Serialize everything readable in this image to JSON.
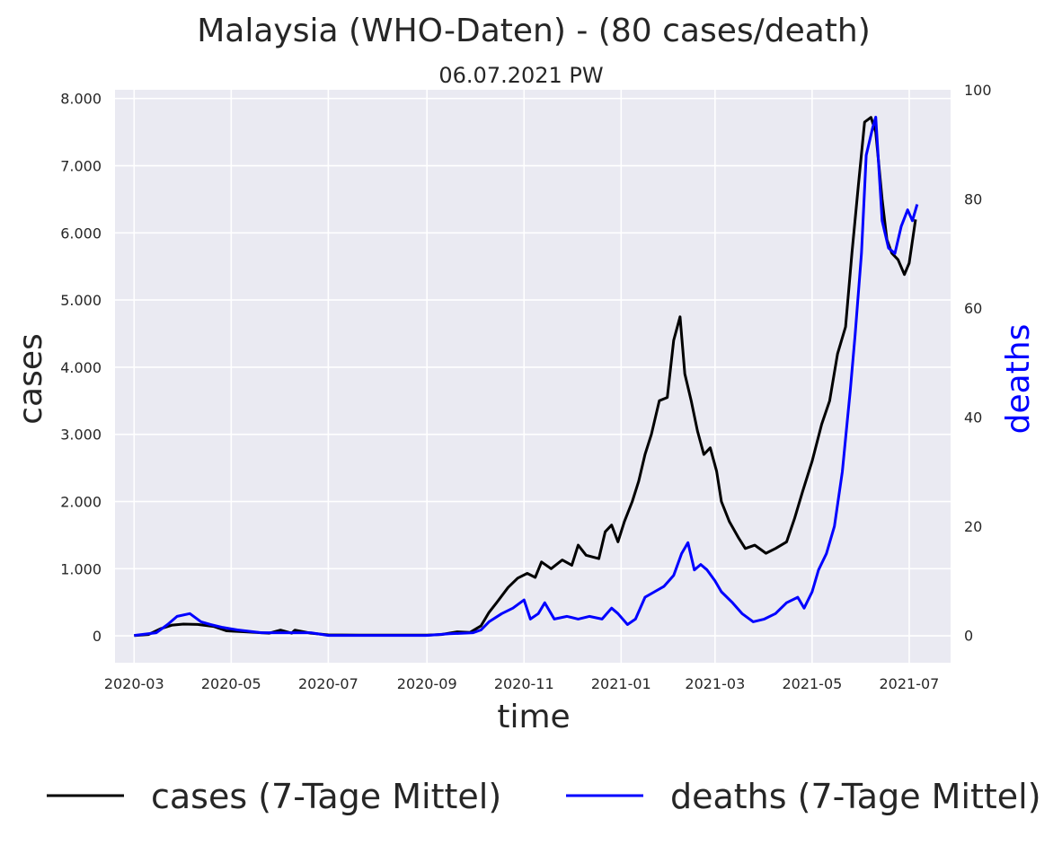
{
  "chart_data": {
    "type": "line",
    "title": "Malaysia (WHO-Daten) - (80 cases/death)",
    "subtitle": "06.07.2021 PW",
    "xlabel": "time",
    "ylabel": "cases",
    "ylabel_right": "deaths",
    "x_ticks": [
      "2020-03",
      "2020-05",
      "2020-07",
      "2020-09",
      "2020-11",
      "2021-01",
      "2021-03",
      "2021-05",
      "2021-07"
    ],
    "y_ticks": [
      "0",
      "1.000",
      "2.000",
      "3.000",
      "4.000",
      "5.000",
      "6.000",
      "7.000",
      "8.000"
    ],
    "y_ticks_right": [
      "0",
      "20",
      "40",
      "60",
      "80",
      "100"
    ],
    "xlim": [
      "2020-02-18",
      "2021-07-27"
    ],
    "ylim": [
      -400,
      8130
    ],
    "ylim_right": [
      -5,
      100
    ],
    "grid": true,
    "legend_position": "bottom",
    "series": [
      {
        "name": "cases (7-Tage Mittel)",
        "axis": "left",
        "color": "#000000",
        "points": [
          [
            "2020-03-01",
            5
          ],
          [
            "2020-03-10",
            20
          ],
          [
            "2020-03-18",
            110
          ],
          [
            "2020-03-25",
            160
          ],
          [
            "2020-04-01",
            175
          ],
          [
            "2020-04-10",
            170
          ],
          [
            "2020-04-20",
            140
          ],
          [
            "2020-04-28",
            75
          ],
          [
            "2020-05-10",
            60
          ],
          [
            "2020-05-25",
            40
          ],
          [
            "2020-06-01",
            85
          ],
          [
            "2020-06-08",
            40
          ],
          [
            "2020-06-10",
            85
          ],
          [
            "2020-06-20",
            40
          ],
          [
            "2020-07-01",
            15
          ],
          [
            "2020-07-20",
            10
          ],
          [
            "2020-08-10",
            10
          ],
          [
            "2020-09-01",
            10
          ],
          [
            "2020-09-10",
            20
          ],
          [
            "2020-09-20",
            60
          ],
          [
            "2020-09-28",
            50
          ],
          [
            "2020-10-05",
            150
          ],
          [
            "2020-10-10",
            350
          ],
          [
            "2020-10-15",
            500
          ],
          [
            "2020-10-22",
            720
          ],
          [
            "2020-10-28",
            860
          ],
          [
            "2020-11-03",
            930
          ],
          [
            "2020-11-08",
            870
          ],
          [
            "2020-11-12",
            1100
          ],
          [
            "2020-11-18",
            1000
          ],
          [
            "2020-11-25",
            1130
          ],
          [
            "2020-12-01",
            1050
          ],
          [
            "2020-12-05",
            1350
          ],
          [
            "2020-12-10",
            1200
          ],
          [
            "2020-12-18",
            1150
          ],
          [
            "2020-12-22",
            1550
          ],
          [
            "2020-12-26",
            1650
          ],
          [
            "2020-12-30",
            1400
          ],
          [
            "2021-01-03",
            1700
          ],
          [
            "2021-01-08",
            2000
          ],
          [
            "2021-01-12",
            2300
          ],
          [
            "2021-01-16",
            2700
          ],
          [
            "2021-01-20",
            3000
          ],
          [
            "2021-01-25",
            3500
          ],
          [
            "2021-01-30",
            3550
          ],
          [
            "2021-02-03",
            4400
          ],
          [
            "2021-02-07",
            4750
          ],
          [
            "2021-02-10",
            3900
          ],
          [
            "2021-02-14",
            3500
          ],
          [
            "2021-02-18",
            3050
          ],
          [
            "2021-02-22",
            2700
          ],
          [
            "2021-02-26",
            2800
          ],
          [
            "2021-03-02",
            2450
          ],
          [
            "2021-03-05",
            2000
          ],
          [
            "2021-03-10",
            1700
          ],
          [
            "2021-03-16",
            1450
          ],
          [
            "2021-03-20",
            1300
          ],
          [
            "2021-03-26",
            1350
          ],
          [
            "2021-04-02",
            1230
          ],
          [
            "2021-04-08",
            1300
          ],
          [
            "2021-04-15",
            1400
          ],
          [
            "2021-04-20",
            1750
          ],
          [
            "2021-04-25",
            2150
          ],
          [
            "2021-05-01",
            2600
          ],
          [
            "2021-05-07",
            3150
          ],
          [
            "2021-05-12",
            3500
          ],
          [
            "2021-05-17",
            4200
          ],
          [
            "2021-05-22",
            4600
          ],
          [
            "2021-05-26",
            5700
          ],
          [
            "2021-05-30",
            6700
          ],
          [
            "2021-06-03",
            7650
          ],
          [
            "2021-06-07",
            7720
          ],
          [
            "2021-06-10",
            7500
          ],
          [
            "2021-06-14",
            6500
          ],
          [
            "2021-06-17",
            5900
          ],
          [
            "2021-06-20",
            5700
          ],
          [
            "2021-06-24",
            5600
          ],
          [
            "2021-06-28",
            5380
          ],
          [
            "2021-07-01",
            5550
          ],
          [
            "2021-07-05",
            6200
          ]
        ]
      },
      {
        "name": "deaths (7-Tage Mittel)",
        "axis": "right",
        "color": "#0000ff",
        "points": [
          [
            "2020-03-01",
            0
          ],
          [
            "2020-03-15",
            0.5
          ],
          [
            "2020-03-22",
            2
          ],
          [
            "2020-03-28",
            3.5
          ],
          [
            "2020-04-05",
            4
          ],
          [
            "2020-04-12",
            2.5
          ],
          [
            "2020-04-18",
            2
          ],
          [
            "2020-04-25",
            1.5
          ],
          [
            "2020-05-05",
            1
          ],
          [
            "2020-05-20",
            0.5
          ],
          [
            "2020-06-05",
            0.5
          ],
          [
            "2020-06-20",
            0.5
          ],
          [
            "2020-07-01",
            0
          ],
          [
            "2020-08-01",
            0
          ],
          [
            "2020-09-01",
            0
          ],
          [
            "2020-09-15",
            0.3
          ],
          [
            "2020-09-30",
            0.5
          ],
          [
            "2020-10-05",
            1
          ],
          [
            "2020-10-10",
            2.5
          ],
          [
            "2020-10-18",
            4
          ],
          [
            "2020-10-25",
            5
          ],
          [
            "2020-11-01",
            6.5
          ],
          [
            "2020-11-05",
            3
          ],
          [
            "2020-11-10",
            4
          ],
          [
            "2020-11-14",
            6
          ],
          [
            "2020-11-20",
            3
          ],
          [
            "2020-11-28",
            3.5
          ],
          [
            "2020-12-05",
            3
          ],
          [
            "2020-12-12",
            3.5
          ],
          [
            "2020-12-20",
            3
          ],
          [
            "2020-12-26",
            5
          ],
          [
            "2020-12-30",
            4
          ],
          [
            "2021-01-05",
            2
          ],
          [
            "2021-01-10",
            3
          ],
          [
            "2021-01-16",
            7
          ],
          [
            "2021-01-22",
            8
          ],
          [
            "2021-01-28",
            9
          ],
          [
            "2021-02-03",
            11
          ],
          [
            "2021-02-08",
            15
          ],
          [
            "2021-02-12",
            17
          ],
          [
            "2021-02-16",
            12
          ],
          [
            "2021-02-20",
            13
          ],
          [
            "2021-02-24",
            12
          ],
          [
            "2021-03-01",
            10
          ],
          [
            "2021-03-05",
            8
          ],
          [
            "2021-03-12",
            6
          ],
          [
            "2021-03-18",
            4
          ],
          [
            "2021-03-25",
            2.5
          ],
          [
            "2021-04-01",
            3
          ],
          [
            "2021-04-08",
            4
          ],
          [
            "2021-04-15",
            6
          ],
          [
            "2021-04-22",
            7
          ],
          [
            "2021-04-26",
            5
          ],
          [
            "2021-05-01",
            8
          ],
          [
            "2021-05-05",
            12
          ],
          [
            "2021-05-10",
            15
          ],
          [
            "2021-05-15",
            20
          ],
          [
            "2021-05-20",
            30
          ],
          [
            "2021-05-25",
            45
          ],
          [
            "2021-05-28",
            55
          ],
          [
            "2021-06-01",
            70
          ],
          [
            "2021-06-04",
            88
          ],
          [
            "2021-06-08",
            93
          ],
          [
            "2021-06-10",
            95
          ],
          [
            "2021-06-14",
            76
          ],
          [
            "2021-06-18",
            71
          ],
          [
            "2021-06-22",
            70
          ],
          [
            "2021-06-26",
            75
          ],
          [
            "2021-06-30",
            78
          ],
          [
            "2021-07-03",
            76
          ],
          [
            "2021-07-06",
            79
          ]
        ]
      }
    ]
  }
}
